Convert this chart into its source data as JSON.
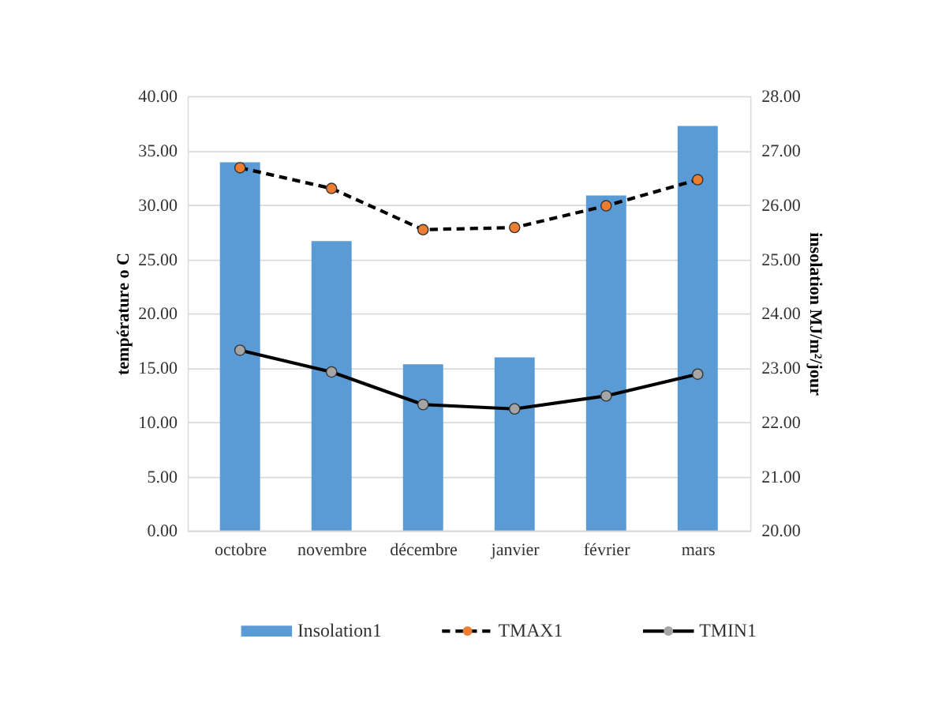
{
  "chart_data": {
    "type": "line",
    "ylabel": "température o C",
    "y2label": "insolation MJ/m²/jour",
    "categories": [
      "octobre",
      "novembre",
      "décembre",
      "janvier",
      "février",
      "mars"
    ],
    "series": [
      {
        "name": "Insolation1",
        "type": "bar",
        "axis": "y2",
        "color": "#5b9bd5",
        "values": [
          26.78,
          25.33,
          23.06,
          23.19,
          26.17,
          27.45
        ]
      },
      {
        "name": "TMAX1",
        "color": "#ed7d31",
        "line_style": "dashed",
        "marker": "circle",
        "values": [
          33.4,
          31.5,
          27.7,
          27.9,
          29.9,
          32.3
        ]
      },
      {
        "name": "TMIN1",
        "color": "#a5a5a5",
        "line_style": "solid",
        "marker": "circle",
        "values": [
          16.6,
          14.6,
          11.6,
          11.2,
          12.4,
          14.4
        ]
      }
    ],
    "ylim": [
      0,
      40
    ],
    "yticks": [
      {
        "value": 0,
        "label": "0.00"
      },
      {
        "value": 5,
        "label": "5.00"
      },
      {
        "value": 10,
        "label": "10.00"
      },
      {
        "value": 15,
        "label": "15.00"
      },
      {
        "value": 20,
        "label": "20.00"
      },
      {
        "value": 25,
        "label": "25.00"
      },
      {
        "value": 30,
        "label": "30.00"
      },
      {
        "value": 35,
        "label": "35.00"
      },
      {
        "value": 40,
        "label": "40.00"
      }
    ],
    "y2lim": [
      20,
      28
    ],
    "y2ticks": [
      {
        "value": 20,
        "label": "20.00"
      },
      {
        "value": 21,
        "label": "21.00"
      },
      {
        "value": 22,
        "label": "22.00"
      },
      {
        "value": 23,
        "label": "23.00"
      },
      {
        "value": 24,
        "label": "24.00"
      },
      {
        "value": 25,
        "label": "25.00"
      },
      {
        "value": 26,
        "label": "26.00"
      },
      {
        "value": 27,
        "label": "27.00"
      },
      {
        "value": 28,
        "label": "28.00"
      }
    ],
    "grid": "y",
    "legend": "bottom"
  }
}
